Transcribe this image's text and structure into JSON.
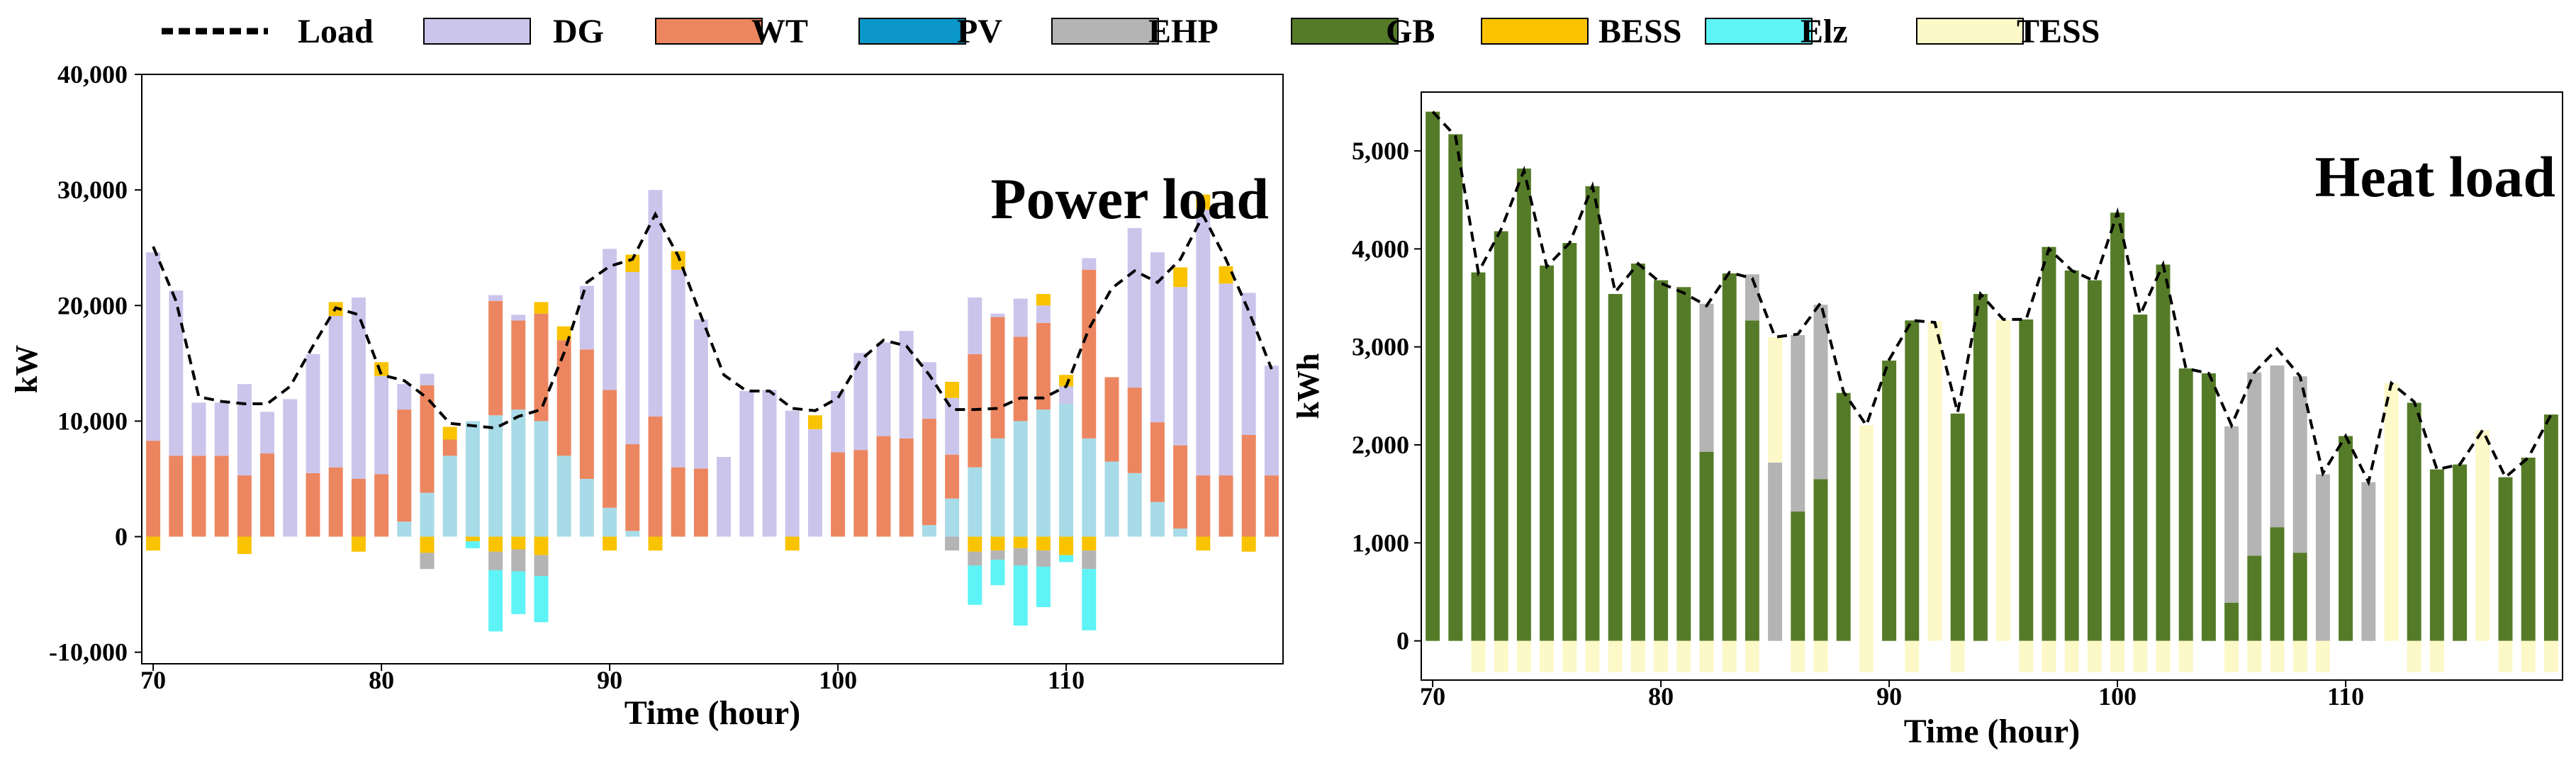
{
  "legend": [
    {
      "name": "Load",
      "color": "#000000",
      "kind": "line"
    },
    {
      "name": "DG",
      "color": "#cbc5ec"
    },
    {
      "name": "WT",
      "color": "#ec8660"
    },
    {
      "name": "PV",
      "color": "#0b97c9"
    },
    {
      "name": "EHP",
      "color": "#b4b4b4"
    },
    {
      "name": "GB",
      "color": "#557b28"
    },
    {
      "name": "BESS",
      "color": "#f9c300"
    },
    {
      "name": "Elz",
      "color": "#5ef3f6"
    },
    {
      "name": "TESS",
      "color": "#fcf8c8"
    }
  ],
  "chart_data": [
    {
      "type": "bar",
      "stacked": true,
      "title": "Power load",
      "xlabel": "Time (hour)",
      "ylabel": "kW",
      "ylim": [
        -11000,
        40000
      ],
      "xlim": [
        69.5,
        119.5
      ],
      "x_ticks": [
        70,
        80,
        90,
        100,
        110
      ],
      "y_ticks": [
        -10000,
        0,
        10000,
        20000,
        30000,
        40000
      ],
      "y_tick_labels": [
        "-10,000",
        "0",
        "10,000",
        "20,000",
        "30,000",
        "40,000"
      ],
      "hours": [
        70,
        71,
        72,
        73,
        74,
        75,
        76,
        77,
        78,
        79,
        80,
        81,
        82,
        83,
        84,
        85,
        86,
        87,
        88,
        89,
        90,
        91,
        92,
        93,
        94,
        95,
        96,
        97,
        98,
        99,
        100,
        101,
        102,
        103,
        104,
        105,
        106,
        107,
        108,
        109,
        110,
        111,
        112,
        113,
        114,
        115,
        116,
        117,
        118,
        119
      ],
      "positive_series": [
        {
          "name": "PV",
          "color": "#a8dbe8",
          "values": [
            0,
            0,
            0,
            0,
            0,
            0,
            0,
            0,
            0,
            0,
            0,
            1300,
            3800,
            7000,
            10000,
            10500,
            11000,
            10000,
            7000,
            5000,
            2500,
            500,
            0,
            0,
            0,
            0,
            0,
            0,
            0,
            0,
            0,
            0,
            0,
            0,
            1000,
            3300,
            6000,
            8500,
            10000,
            11000,
            11500,
            8500,
            6500,
            5500,
            3000,
            700,
            0,
            0,
            0,
            0
          ]
        },
        {
          "name": "WT",
          "color": "#ec8660",
          "values": [
            8300,
            7000,
            7000,
            7000,
            5300,
            7200,
            0,
            5500,
            6000,
            5000,
            5400,
            9700,
            9300,
            1400,
            0,
            9900,
            7700,
            9300,
            10000,
            11200,
            10200,
            7500,
            10400,
            6000,
            5900,
            0,
            0,
            0,
            0,
            0,
            7300,
            7500,
            8700,
            8500,
            9200,
            3800,
            9800,
            10500,
            7300,
            7500,
            0,
            14600,
            7300,
            7400,
            6900,
            7200,
            5300,
            5300,
            8800,
            5300
          ]
        },
        {
          "name": "DG",
          "color": "#cbc5ec",
          "values": [
            16300,
            14300,
            4600,
            4600,
            7900,
            3600,
            11900,
            10300,
            13100,
            15700,
            8500,
            2200,
            1000,
            0,
            0,
            500,
            500,
            0,
            0,
            5500,
            12200,
            14900,
            19600,
            17100,
            12900,
            6900,
            12600,
            12700,
            10900,
            9300,
            5300,
            8400,
            8100,
            9300,
            4900,
            4900,
            4900,
            300,
            3300,
            1500,
            1500,
            1000,
            0,
            13800,
            14700,
            13700,
            23000,
            16600,
            12300,
            9500
          ]
        },
        {
          "name": "BESS",
          "color": "#f9c300",
          "values": [
            0,
            0,
            0,
            0,
            0,
            0,
            0,
            0,
            1200,
            0,
            1200,
            0,
            0,
            1100,
            0,
            0,
            0,
            1000,
            1200,
            0,
            0,
            1500,
            0,
            1600,
            0,
            0,
            0,
            0,
            0,
            1200,
            0,
            0,
            0,
            0,
            0,
            1400,
            0,
            0,
            0,
            1000,
            1000,
            0,
            0,
            0,
            0,
            1700,
            1300,
            1500,
            0,
            0
          ]
        },
        {
          "name": "EHP",
          "color": "#b4b4b4",
          "values": [
            0,
            0,
            0,
            0,
            0,
            0,
            0,
            0,
            0,
            0,
            0,
            0,
            0,
            0,
            0,
            0,
            0,
            0,
            0,
            0,
            0,
            0,
            0,
            0,
            0,
            0,
            0,
            0,
            0,
            0,
            0,
            0,
            0,
            0,
            0,
            0,
            0,
            0,
            0,
            0,
            0,
            0,
            0,
            0,
            0,
            0,
            0,
            0,
            0,
            0
          ]
        }
      ],
      "negative_series": [
        {
          "name": "BESS",
          "color": "#f9c300",
          "values": [
            -1200,
            0,
            0,
            0,
            -1500,
            0,
            0,
            0,
            0,
            -1300,
            0,
            0,
            -1400,
            0,
            -400,
            -1300,
            -1100,
            -1600,
            0,
            0,
            -1200,
            0,
            -1200,
            0,
            0,
            0,
            0,
            0,
            -1200,
            0,
            0,
            0,
            0,
            0,
            0,
            0,
            -1300,
            -1200,
            -1000,
            -1200,
            -1600,
            -1200,
            0,
            0,
            0,
            0,
            -1200,
            0,
            -1300,
            0
          ]
        },
        {
          "name": "EHP",
          "color": "#b4b4b4",
          "values": [
            0,
            0,
            0,
            0,
            0,
            0,
            0,
            0,
            0,
            0,
            0,
            0,
            -1400,
            0,
            0,
            -1600,
            -1900,
            -1800,
            0,
            0,
            0,
            0,
            0,
            0,
            0,
            0,
            0,
            0,
            0,
            0,
            0,
            0,
            0,
            0,
            0,
            -1200,
            -1200,
            -800,
            -1500,
            -1400,
            0,
            -1600,
            0,
            0,
            0,
            0,
            0,
            0,
            0,
            0
          ]
        },
        {
          "name": "Elz",
          "color": "#5ef3f6",
          "values": [
            0,
            0,
            0,
            0,
            0,
            0,
            0,
            0,
            0,
            0,
            0,
            0,
            0,
            0,
            -600,
            -5300,
            -3700,
            -4000,
            0,
            0,
            0,
            0,
            0,
            0,
            0,
            0,
            0,
            0,
            0,
            0,
            0,
            0,
            0,
            0,
            0,
            0,
            -3400,
            -2200,
            -5200,
            -3500,
            -600,
            -5300,
            0,
            0,
            0,
            0,
            0,
            0,
            0,
            0
          ]
        }
      ],
      "load": [
        25100,
        20400,
        12100,
        11700,
        11500,
        11500,
        13000,
        16500,
        19800,
        19200,
        14000,
        13500,
        12000,
        9800,
        9600,
        9400,
        10400,
        11000,
        15900,
        22000,
        23400,
        24000,
        27900,
        24300,
        19100,
        14000,
        12600,
        12600,
        11100,
        10900,
        12000,
        15300,
        17000,
        16500,
        14000,
        11000,
        11000,
        11100,
        12000,
        12000,
        13000,
        18000,
        21500,
        23000,
        22000,
        24000,
        27800,
        24000,
        19500,
        14500
      ]
    },
    {
      "type": "bar",
      "stacked": true,
      "title": "Heat load",
      "xlabel": "Time (hour)",
      "ylabel": "kWh",
      "ylim": [
        -400,
        5600
      ],
      "xlim": [
        69.5,
        119.5
      ],
      "x_ticks": [
        70,
        80,
        90,
        100,
        110
      ],
      "y_ticks": [
        0,
        1000,
        2000,
        3000,
        4000,
        5000
      ],
      "y_tick_labels": [
        "0",
        "1,000",
        "2,000",
        "3,000",
        "4,000",
        "5,000"
      ],
      "hours": [
        70,
        71,
        72,
        73,
        74,
        75,
        76,
        77,
        78,
        79,
        80,
        81,
        82,
        83,
        84,
        85,
        86,
        87,
        88,
        89,
        90,
        91,
        92,
        93,
        94,
        95,
        96,
        97,
        98,
        99,
        100,
        101,
        102,
        103,
        104,
        105,
        106,
        107,
        108,
        109,
        110,
        111,
        112,
        113,
        114,
        115,
        116,
        117,
        118,
        119
      ],
      "positive_series": [
        {
          "name": "GB",
          "color": "#557b28",
          "values": [
            5400,
            5170,
            3760,
            4180,
            4820,
            3830,
            4060,
            4640,
            3540,
            3850,
            3680,
            3610,
            1930,
            3750,
            3270,
            0,
            1320,
            1650,
            2530,
            0,
            2860,
            3270,
            0,
            2320,
            3540,
            0,
            3280,
            4020,
            3780,
            3680,
            4370,
            3330,
            3840,
            2780,
            2730,
            390,
            870,
            1160,
            900,
            0,
            2090,
            0,
            0,
            2430,
            1750,
            1800,
            0,
            1670,
            1870,
            2310
          ]
        },
        {
          "name": "EHP",
          "color": "#b4b4b4",
          "values": [
            0,
            0,
            0,
            0,
            0,
            0,
            0,
            0,
            0,
            0,
            0,
            0,
            1510,
            0,
            470,
            1820,
            1800,
            1780,
            0,
            0,
            0,
            0,
            0,
            0,
            0,
            0,
            0,
            0,
            0,
            0,
            0,
            0,
            0,
            0,
            0,
            1800,
            1870,
            1650,
            1800,
            1700,
            0,
            1620,
            0,
            0,
            0,
            0,
            0,
            0,
            0,
            0
          ]
        },
        {
          "name": "TESS",
          "color": "#fcf8c8",
          "values": [
            0,
            0,
            0,
            0,
            0,
            0,
            0,
            0,
            0,
            0,
            0,
            0,
            0,
            0,
            0,
            1280,
            0,
            0,
            0,
            2200,
            0,
            0,
            3260,
            0,
            0,
            3280,
            0,
            0,
            0,
            0,
            0,
            0,
            0,
            0,
            0,
            0,
            0,
            0,
            0,
            0,
            0,
            0,
            2630,
            0,
            0,
            0,
            2150,
            0,
            0,
            0
          ]
        }
      ],
      "negative_series": [
        {
          "name": "TESS",
          "color": "#fcf8c8",
          "values": [
            0,
            0,
            -320,
            -320,
            -320,
            -320,
            -320,
            -320,
            -320,
            -320,
            -320,
            -320,
            -320,
            -320,
            -320,
            0,
            -320,
            -320,
            0,
            -320,
            0,
            -320,
            0,
            -320,
            0,
            0,
            -320,
            -320,
            -320,
            -320,
            -320,
            -320,
            -320,
            -320,
            0,
            -320,
            -320,
            -320,
            -320,
            -320,
            0,
            0,
            0,
            -320,
            -320,
            0,
            0,
            -320,
            -320,
            -320
          ]
        }
      ],
      "load": [
        5400,
        5150,
        3760,
        4200,
        4800,
        3820,
        4060,
        4640,
        3560,
        3850,
        3650,
        3550,
        3420,
        3760,
        3700,
        3100,
        3130,
        3450,
        2540,
        2200,
        2870,
        3270,
        3250,
        2330,
        3540,
        3280,
        3280,
        4000,
        3780,
        3670,
        4370,
        3330,
        3840,
        2780,
        2730,
        2200,
        2740,
        2980,
        2700,
        1710,
        2090,
        1620,
        2630,
        2440,
        1750,
        1800,
        2150,
        1670,
        1870,
        2310
      ]
    }
  ]
}
